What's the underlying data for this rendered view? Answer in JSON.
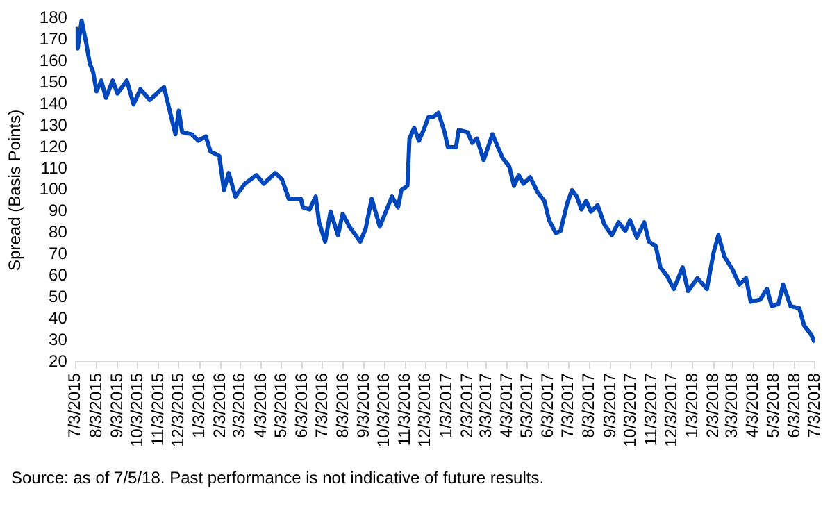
{
  "chart_data": {
    "type": "line",
    "ylabel": "Spread (Basis Points)",
    "x": [
      "2015-07-03",
      "2015-07-06",
      "2015-07-12",
      "2015-07-19",
      "2015-07-24",
      "2015-07-29",
      "2015-08-03",
      "2015-08-10",
      "2015-08-17",
      "2015-08-27",
      "2015-09-03",
      "2015-09-17",
      "2015-09-27",
      "2015-10-07",
      "2015-10-21",
      "2015-11-04",
      "2015-11-11",
      "2015-11-18",
      "2015-11-28",
      "2015-12-03",
      "2015-12-08",
      "2015-12-22",
      "2016-01-01",
      "2016-01-12",
      "2016-01-19",
      "2016-02-01",
      "2016-02-08",
      "2016-02-15",
      "2016-02-25",
      "2016-03-10",
      "2016-03-27",
      "2016-04-07",
      "2016-04-24",
      "2016-05-04",
      "2016-05-14",
      "2016-06-01",
      "2016-06-04",
      "2016-06-14",
      "2016-06-23",
      "2016-06-28",
      "2016-07-07",
      "2016-07-15",
      "2016-07-26",
      "2016-08-02",
      "2016-08-12",
      "2016-08-28",
      "2016-09-05",
      "2016-09-14",
      "2016-09-26",
      "2016-10-14",
      "2016-10-23",
      "2016-10-28",
      "2016-11-06",
      "2016-11-09",
      "2016-11-16",
      "2016-11-23",
      "2016-11-30",
      "2016-12-07",
      "2016-12-14",
      "2016-12-22",
      "2016-12-31",
      "2017-01-05",
      "2017-01-17",
      "2017-01-21",
      "2017-02-03",
      "2017-02-10",
      "2017-02-17",
      "2017-02-27",
      "2017-03-12",
      "2017-03-27",
      "2017-04-06",
      "2017-04-13",
      "2017-04-20",
      "2017-04-27",
      "2017-05-07",
      "2017-05-18",
      "2017-05-28",
      "2017-06-04",
      "2017-06-14",
      "2017-06-21",
      "2017-07-01",
      "2017-07-08",
      "2017-07-15",
      "2017-07-22",
      "2017-07-29",
      "2017-08-05",
      "2017-08-15",
      "2017-08-25",
      "2017-09-05",
      "2017-09-15",
      "2017-09-25",
      "2017-10-02",
      "2017-10-12",
      "2017-10-23",
      "2017-10-30",
      "2017-11-09",
      "2017-11-16",
      "2017-11-26",
      "2017-12-06",
      "2017-12-19",
      "2017-12-27",
      "2018-01-10",
      "2018-01-24",
      "2018-02-03",
      "2018-02-10",
      "2018-02-19",
      "2018-03-03",
      "2018-03-13",
      "2018-03-23",
      "2018-03-30",
      "2018-04-13",
      "2018-04-23",
      "2018-04-30",
      "2018-05-10",
      "2018-05-17",
      "2018-05-28",
      "2018-06-10",
      "2018-06-17",
      "2018-06-27",
      "2018-07-03"
    ],
    "series": [
      {
        "color": "#0047bb",
        "values": [
          176,
          166,
          179,
          168,
          159,
          155,
          146,
          151,
          143,
          151,
          145,
          151,
          140,
          147,
          142,
          146,
          148,
          139,
          126,
          137,
          127,
          126,
          123,
          125,
          118,
          116,
          100,
          108,
          97,
          103,
          107,
          103,
          108,
          105,
          96,
          96,
          92,
          91,
          97,
          85,
          76,
          90,
          79,
          89,
          83,
          76,
          82,
          96,
          83,
          97,
          92,
          100,
          102,
          124,
          129,
          123,
          128,
          134,
          134,
          136,
          127,
          120,
          120,
          128,
          127,
          122,
          124,
          114,
          126,
          115,
          111,
          102,
          107,
          103,
          106,
          99,
          95,
          86,
          80,
          81,
          94,
          100,
          97,
          91,
          95,
          90,
          93,
          84,
          79,
          85,
          81,
          86,
          78,
          85,
          76,
          74,
          64,
          60,
          54,
          64,
          53,
          59,
          54,
          71,
          79,
          69,
          63,
          56,
          59,
          48,
          49,
          54,
          46,
          47,
          56,
          46,
          45,
          37,
          33,
          29
        ]
      }
    ],
    "xlim": [
      "2015-07-03",
      "2018-07-03"
    ],
    "xticks": [
      {
        "value": "2015-07-03",
        "label": "7/3/2015"
      },
      {
        "value": "2015-08-03",
        "label": "8/3/2015"
      },
      {
        "value": "2015-09-03",
        "label": "9/3/2015"
      },
      {
        "value": "2015-10-03",
        "label": "10/3/2015"
      },
      {
        "value": "2015-11-03",
        "label": "11/3/2015"
      },
      {
        "value": "2015-12-03",
        "label": "12/3/2015"
      },
      {
        "value": "2016-01-03",
        "label": "1/3/2016"
      },
      {
        "value": "2016-02-03",
        "label": "2/3/2016"
      },
      {
        "value": "2016-03-03",
        "label": "3/3/2016"
      },
      {
        "value": "2016-04-03",
        "label": "4/3/2016"
      },
      {
        "value": "2016-05-03",
        "label": "5/3/2016"
      },
      {
        "value": "2016-06-03",
        "label": "6/3/2016"
      },
      {
        "value": "2016-07-03",
        "label": "7/3/2016"
      },
      {
        "value": "2016-08-03",
        "label": "8/3/2016"
      },
      {
        "value": "2016-09-03",
        "label": "9/3/2016"
      },
      {
        "value": "2016-10-03",
        "label": "10/3/2016"
      },
      {
        "value": "2016-11-03",
        "label": "11/3/2016"
      },
      {
        "value": "2016-12-03",
        "label": "12/3/2016"
      },
      {
        "value": "2017-01-03",
        "label": "1/3/2017"
      },
      {
        "value": "2017-02-03",
        "label": "2/3/2017"
      },
      {
        "value": "2017-03-03",
        "label": "3/3/2017"
      },
      {
        "value": "2017-04-03",
        "label": "4/3/2017"
      },
      {
        "value": "2017-05-03",
        "label": "5/3/2017"
      },
      {
        "value": "2017-06-03",
        "label": "6/3/2017"
      },
      {
        "value": "2017-07-03",
        "label": "7/3/2017"
      },
      {
        "value": "2017-08-03",
        "label": "8/3/2017"
      },
      {
        "value": "2017-09-03",
        "label": "9/3/2017"
      },
      {
        "value": "2017-10-03",
        "label": "10/3/2017"
      },
      {
        "value": "2017-11-03",
        "label": "11/3/2017"
      },
      {
        "value": "2017-12-03",
        "label": "12/3/2017"
      },
      {
        "value": "2018-01-03",
        "label": "1/3/2018"
      },
      {
        "value": "2018-02-03",
        "label": "2/3/2018"
      },
      {
        "value": "2018-03-03",
        "label": "3/3/2018"
      },
      {
        "value": "2018-04-03",
        "label": "4/3/2018"
      },
      {
        "value": "2018-05-03",
        "label": "5/3/2018"
      },
      {
        "value": "2018-06-03",
        "label": "6/3/2018"
      },
      {
        "value": "2018-07-03",
        "label": "7/3/2018"
      }
    ],
    "ylim": [
      20,
      180
    ],
    "yticks": [
      20,
      30,
      40,
      50,
      60,
      70,
      80,
      90,
      100,
      110,
      120,
      130,
      140,
      150,
      160,
      170,
      180
    ],
    "grid": false,
    "legend": false,
    "marker": "none",
    "line_style": "solid",
    "annotations": [
      "Source: as of 7/5/18. Past performance is not indicative of future results."
    ]
  }
}
